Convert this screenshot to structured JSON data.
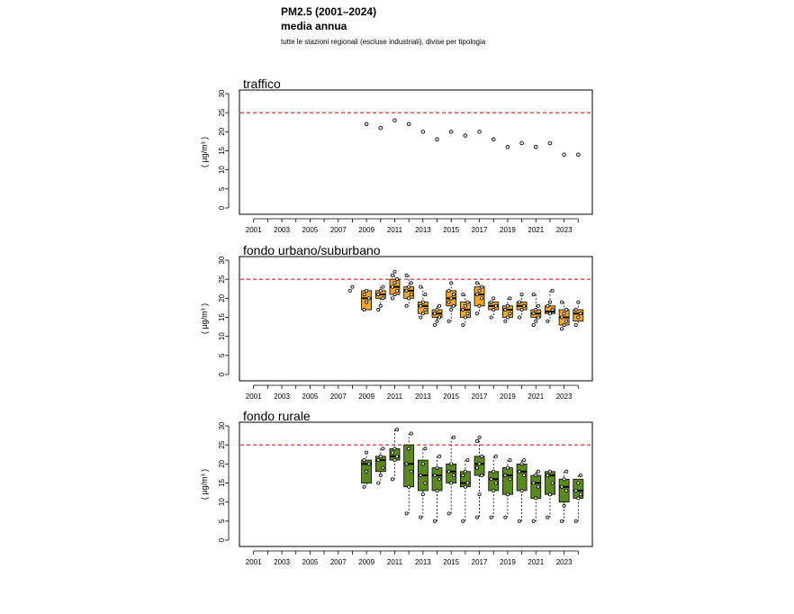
{
  "header": {
    "title": "PM2.5 (2001–2024)",
    "subtitle": "media annua",
    "note": "tutte le stazioni regionali (escluse industriali), divise per tipologia"
  },
  "chart_data": [
    {
      "type": "scatter",
      "title": "traffico",
      "ylabel": "( µg/m³ )",
      "ylim": [
        0,
        30
      ],
      "yticks": [
        0,
        5,
        10,
        15,
        20,
        25,
        30
      ],
      "xticks": [
        2001,
        2003,
        2005,
        2007,
        2009,
        2011,
        2013,
        2015,
        2017,
        2019,
        2021,
        2023
      ],
      "xlim": [
        2000,
        2025
      ],
      "reference_line": {
        "value": 25,
        "color": "#dd2222",
        "style": "dashed"
      },
      "grid": false,
      "points": [
        {
          "x": 2009,
          "y": 22
        },
        {
          "x": 2010,
          "y": 21
        },
        {
          "x": 2011,
          "y": 23
        },
        {
          "x": 2012,
          "y": 22
        },
        {
          "x": 2013,
          "y": 20
        },
        {
          "x": 2014,
          "y": 18
        },
        {
          "x": 2015,
          "y": 20
        },
        {
          "x": 2016,
          "y": 19
        },
        {
          "x": 2017,
          "y": 20
        },
        {
          "x": 2018,
          "y": 18
        },
        {
          "x": 2019,
          "y": 16
        },
        {
          "x": 2020,
          "y": 17
        },
        {
          "x": 2021,
          "y": 16
        },
        {
          "x": 2022,
          "y": 17
        },
        {
          "x": 2023,
          "y": 14
        },
        {
          "x": 2024,
          "y": 14
        }
      ]
    },
    {
      "type": "box",
      "title": "fondo urbano/suburbano",
      "ylabel": "( µg/m³ )",
      "ylim": [
        0,
        30
      ],
      "yticks": [
        0,
        5,
        10,
        15,
        20,
        25,
        30
      ],
      "xticks": [
        2001,
        2003,
        2005,
        2007,
        2009,
        2011,
        2013,
        2015,
        2017,
        2019,
        2021,
        2023
      ],
      "xlim": [
        2000,
        2025
      ],
      "box_color": "#f5a623",
      "reference_line": {
        "value": 25,
        "color": "#dd2222",
        "style": "dashed"
      },
      "grid": false,
      "boxes": [
        {
          "x": 2008,
          "pts": [
            22,
            23
          ]
        },
        {
          "x": 2009,
          "q1": 17,
          "median": 20,
          "q3": 22,
          "min": 17,
          "max": 22,
          "pts": [
            17,
            19,
            20,
            21,
            22
          ]
        },
        {
          "x": 2010,
          "q1": 20,
          "median": 21,
          "q3": 22,
          "min": 17,
          "max": 23,
          "pts": [
            17,
            18,
            20,
            21,
            22,
            23
          ]
        },
        {
          "x": 2011,
          "q1": 21,
          "median": 23,
          "q3": 25,
          "min": 20,
          "max": 27,
          "pts": [
            20,
            21,
            22,
            23,
            24,
            25,
            26,
            27
          ]
        },
        {
          "x": 2012,
          "q1": 20,
          "median": 22,
          "q3": 23,
          "min": 18,
          "max": 26,
          "pts": [
            18,
            20,
            21,
            22,
            23,
            24,
            26
          ]
        },
        {
          "x": 2013,
          "q1": 16,
          "median": 18,
          "q3": 19,
          "min": 15,
          "max": 23,
          "pts": [
            15,
            16,
            17,
            18,
            19,
            21,
            23
          ]
        },
        {
          "x": 2014,
          "q1": 15,
          "median": 16,
          "q3": 17,
          "min": 13,
          "max": 18,
          "pts": [
            13,
            14,
            15,
            16,
            17,
            18
          ]
        },
        {
          "x": 2015,
          "q1": 18,
          "median": 20,
          "q3": 22,
          "min": 14,
          "max": 24,
          "pts": [
            14,
            17,
            18,
            19,
            20,
            21,
            22,
            24
          ]
        },
        {
          "x": 2016,
          "q1": 15,
          "median": 17,
          "q3": 19,
          "min": 13,
          "max": 21,
          "pts": [
            13,
            15,
            16,
            17,
            18,
            19,
            21
          ]
        },
        {
          "x": 2017,
          "q1": 18,
          "median": 21,
          "q3": 23,
          "min": 16,
          "max": 24,
          "pts": [
            16,
            18,
            20,
            21,
            22,
            23,
            24
          ]
        },
        {
          "x": 2018,
          "q1": 17,
          "median": 18,
          "q3": 19,
          "min": 15,
          "max": 20,
          "pts": [
            15,
            17,
            18,
            19,
            20
          ]
        },
        {
          "x": 2019,
          "q1": 15,
          "median": 17,
          "q3": 18,
          "min": 14,
          "max": 20,
          "pts": [
            14,
            15,
            16,
            17,
            18,
            20
          ]
        },
        {
          "x": 2020,
          "q1": 17,
          "median": 18,
          "q3": 19,
          "min": 15,
          "max": 21,
          "pts": [
            15,
            17,
            18,
            19,
            21
          ]
        },
        {
          "x": 2021,
          "q1": 15,
          "median": 16,
          "q3": 17,
          "min": 13,
          "max": 21,
          "pts": [
            13,
            14,
            15,
            16,
            17,
            18,
            21
          ]
        },
        {
          "x": 2022,
          "q1": 16,
          "median": 16.5,
          "q3": 18,
          "min": 14,
          "max": 22,
          "pts": [
            14,
            16,
            17,
            18,
            19,
            22
          ]
        },
        {
          "x": 2023,
          "q1": 13,
          "median": 15,
          "q3": 17,
          "min": 12,
          "max": 19,
          "pts": [
            12,
            13,
            14,
            15,
            16,
            17,
            19
          ]
        },
        {
          "x": 2024,
          "q1": 14,
          "median": 16,
          "q3": 17,
          "min": 13,
          "max": 19,
          "pts": [
            13,
            15,
            16,
            17,
            19
          ]
        }
      ]
    },
    {
      "type": "box",
      "title": "fondo rurale",
      "ylabel": "( µg/m³ )",
      "ylim": [
        0,
        30
      ],
      "yticks": [
        0,
        5,
        10,
        15,
        20,
        25,
        30
      ],
      "xticks": [
        2001,
        2003,
        2005,
        2007,
        2009,
        2011,
        2013,
        2015,
        2017,
        2019,
        2021,
        2023
      ],
      "xlim": [
        2000,
        2025
      ],
      "box_color": "#5a8a1e",
      "reference_line": {
        "value": 25,
        "color": "#dd2222",
        "style": "dashed"
      },
      "grid": false,
      "boxes": [
        {
          "x": 2009,
          "q1": 15,
          "median": 20,
          "q3": 21,
          "min": 14,
          "max": 23,
          "pts": [
            14,
            18,
            20,
            21,
            23
          ]
        },
        {
          "x": 2010,
          "q1": 18,
          "median": 21,
          "q3": 22,
          "min": 15,
          "max": 24,
          "pts": [
            15,
            17,
            19,
            21,
            22,
            24
          ]
        },
        {
          "x": 2011,
          "q1": 21,
          "median": 22,
          "q3": 24,
          "min": 16,
          "max": 29,
          "pts": [
            16,
            21,
            22,
            23,
            24,
            29
          ]
        },
        {
          "x": 2012,
          "q1": 14,
          "median": 20,
          "q3": 25,
          "min": 7,
          "max": 28,
          "pts": [
            7,
            14,
            18,
            20,
            24,
            28
          ]
        },
        {
          "x": 2013,
          "q1": 13,
          "median": 17,
          "q3": 21,
          "min": 6,
          "max": 24,
          "pts": [
            6,
            12,
            15,
            17,
            20,
            24
          ]
        },
        {
          "x": 2014,
          "q1": 13,
          "median": 17,
          "q3": 19,
          "min": 5,
          "max": 22,
          "pts": [
            5,
            13,
            16,
            17,
            19,
            22
          ]
        },
        {
          "x": 2015,
          "q1": 15,
          "median": 18,
          "q3": 20,
          "min": 7,
          "max": 27,
          "pts": [
            7,
            15,
            17,
            18,
            20,
            27
          ]
        },
        {
          "x": 2016,
          "q1": 14,
          "median": 15,
          "q3": 18,
          "min": 5,
          "max": 21,
          "pts": [
            5,
            14,
            15,
            17,
            18,
            21
          ]
        },
        {
          "x": 2017,
          "q1": 17,
          "median": 20,
          "q3": 22,
          "min": 6,
          "max": 27,
          "pts": [
            6,
            12,
            17,
            19,
            20,
            22,
            26,
            27
          ]
        },
        {
          "x": 2018,
          "q1": 13,
          "median": 16,
          "q3": 18,
          "min": 6,
          "max": 22,
          "pts": [
            6,
            13,
            15,
            16,
            18,
            22
          ]
        },
        {
          "x": 2019,
          "q1": 12,
          "median": 17,
          "q3": 19,
          "min": 6,
          "max": 21,
          "pts": [
            6,
            12,
            16,
            17,
            19,
            21
          ]
        },
        {
          "x": 2020,
          "q1": 13,
          "median": 18,
          "q3": 20,
          "min": 5,
          "max": 21,
          "pts": [
            5,
            13,
            17,
            18,
            20,
            21
          ]
        },
        {
          "x": 2021,
          "q1": 11,
          "median": 15,
          "q3": 17,
          "min": 5,
          "max": 18,
          "pts": [
            5,
            11,
            14,
            15,
            17,
            18
          ]
        },
        {
          "x": 2022,
          "q1": 12,
          "median": 17,
          "q3": 18,
          "min": 6,
          "max": 18,
          "pts": [
            6,
            12,
            15,
            17,
            18
          ]
        },
        {
          "x": 2023,
          "q1": 10,
          "median": 14,
          "q3": 16,
          "min": 5,
          "max": 18,
          "pts": [
            5,
            9,
            13,
            14,
            16,
            18
          ]
        },
        {
          "x": 2024,
          "q1": 11,
          "median": 13,
          "q3": 16,
          "min": 5,
          "max": 17,
          "pts": [
            5,
            11,
            12,
            13,
            15,
            17
          ]
        }
      ]
    }
  ]
}
